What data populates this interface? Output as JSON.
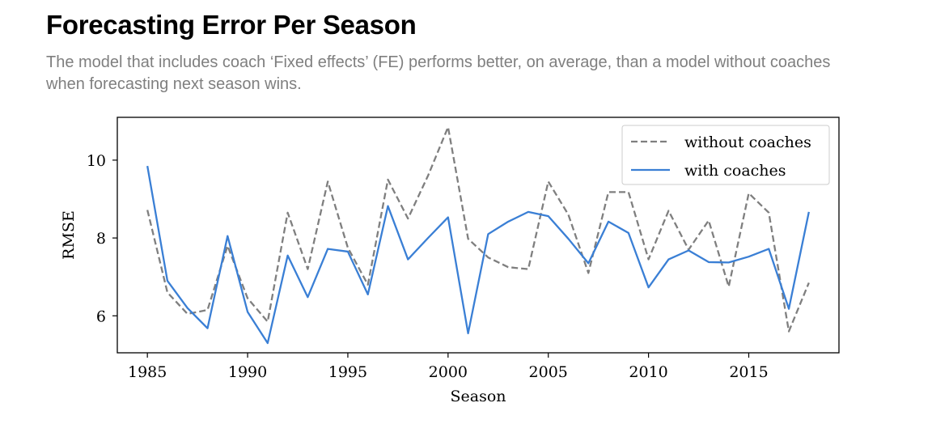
{
  "title": "Forecasting Error Per Season",
  "subtitle": "The model that includes coach ‘Fixed effects’ (FE) performs better, on average, than a model without coaches when forecasting next season wins.",
  "chart_data": {
    "type": "line",
    "xlabel": "Season",
    "ylabel": "RMSE",
    "xlim": [
      1983.5,
      2019.5
    ],
    "ylim": [
      5.05,
      11.1
    ],
    "xticks": [
      1985,
      1990,
      1995,
      2000,
      2005,
      2010,
      2015
    ],
    "yticks": [
      6,
      8,
      10
    ],
    "grid": false,
    "legend_position": "top-right",
    "x": [
      1985,
      1986,
      1987,
      1988,
      1989,
      1990,
      1991,
      1992,
      1993,
      1994,
      1995,
      1996,
      1997,
      1998,
      1999,
      2000,
      2001,
      2002,
      2003,
      2004,
      2005,
      2006,
      2007,
      2008,
      2009,
      2010,
      2011,
      2012,
      2013,
      2014,
      2015,
      2016,
      2017,
      2018
    ],
    "series": [
      {
        "name": "without coaches",
        "color": "#7f7f7f",
        "style": "dashed",
        "values": [
          8.72,
          6.6,
          6.05,
          6.15,
          7.8,
          6.45,
          5.85,
          8.65,
          7.2,
          9.45,
          7.75,
          6.8,
          9.5,
          8.5,
          9.6,
          10.85,
          7.98,
          7.5,
          7.25,
          7.2,
          9.45,
          8.6,
          7.1,
          9.18,
          9.18,
          7.45,
          8.7,
          7.7,
          8.45,
          6.75,
          9.15,
          8.65,
          5.6,
          6.85
        ]
      },
      {
        "name": "with coaches",
        "color": "#3a7fd5",
        "style": "solid",
        "values": [
          9.85,
          6.9,
          6.2,
          5.68,
          8.05,
          6.1,
          5.3,
          7.55,
          6.48,
          7.72,
          7.65,
          6.55,
          8.82,
          7.45,
          8.0,
          8.53,
          5.55,
          8.1,
          8.42,
          8.67,
          8.56,
          7.98,
          7.35,
          8.42,
          8.13,
          6.73,
          7.45,
          7.68,
          7.38,
          7.37,
          7.52,
          7.72,
          6.18,
          8.67
        ]
      }
    ]
  }
}
